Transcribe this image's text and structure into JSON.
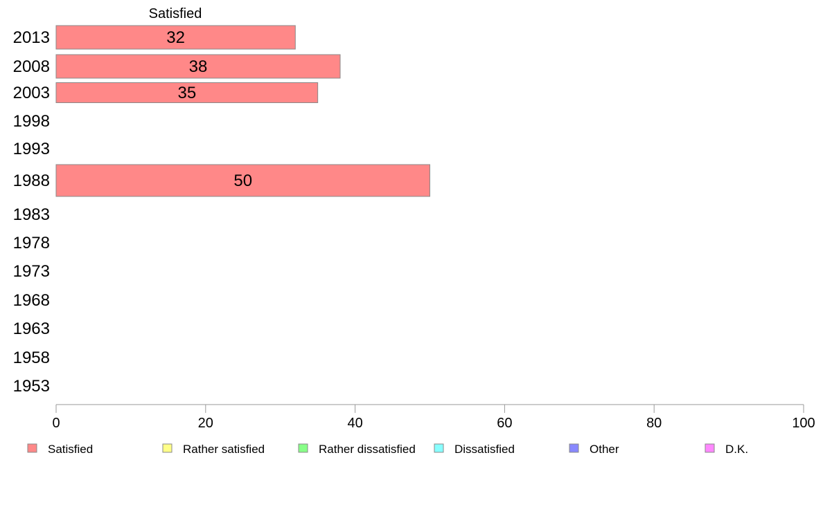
{
  "chart_data": {
    "type": "bar",
    "orientation": "horizontal",
    "stacked": true,
    "series_header": "Satisfied",
    "categories": [
      "2013",
      "2008",
      "2003",
      "1998",
      "1993",
      "1988",
      "1983",
      "1978",
      "1973",
      "1968",
      "1963",
      "1958",
      "1953"
    ],
    "series": [
      {
        "name": "Satisfied",
        "color": "#ff8888",
        "values": [
          32,
          38,
          35,
          null,
          null,
          50,
          null,
          null,
          null,
          null,
          null,
          null,
          null
        ]
      },
      {
        "name": "Rather satisfied",
        "color": "#ffff88",
        "values": [
          null,
          null,
          null,
          null,
          null,
          null,
          null,
          null,
          null,
          null,
          null,
          null,
          null
        ]
      },
      {
        "name": "Rather dissatisfied",
        "color": "#88ff88",
        "values": [
          null,
          null,
          null,
          null,
          null,
          null,
          null,
          null,
          null,
          null,
          null,
          null,
          null
        ]
      },
      {
        "name": "Dissatisfied",
        "color": "#88ffff",
        "values": [
          null,
          null,
          null,
          null,
          null,
          null,
          null,
          null,
          null,
          null,
          null,
          null,
          null
        ]
      },
      {
        "name": "Other",
        "color": "#8888ff",
        "values": [
          null,
          null,
          null,
          null,
          null,
          null,
          null,
          null,
          null,
          null,
          null,
          null,
          null
        ]
      },
      {
        "name": "D.K.",
        "color": "#ff88ff",
        "values": [
          null,
          null,
          null,
          null,
          null,
          null,
          null,
          null,
          null,
          null,
          null,
          null,
          null
        ]
      }
    ],
    "xlim": [
      0,
      100
    ],
    "xticks": [
      "0",
      "20",
      "40",
      "60",
      "80",
      "100"
    ],
    "grid": false,
    "legend_position": "bottom"
  }
}
